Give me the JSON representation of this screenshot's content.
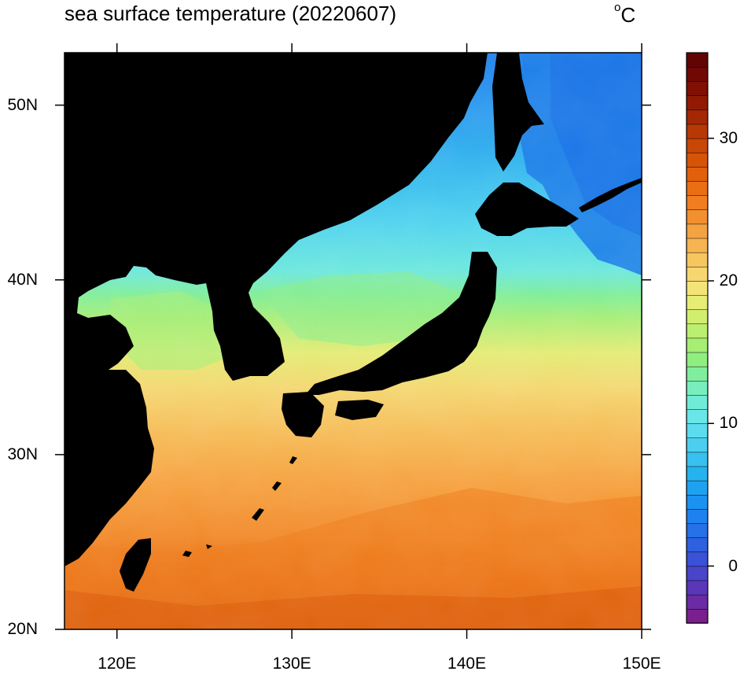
{
  "title": "sea surface temperature (20220607)",
  "unit": {
    "symbol": "o",
    "letter": "C"
  },
  "map": {
    "lon_range": [
      117,
      150
    ],
    "lat_range": [
      20,
      53
    ],
    "lon_ticks": [
      {
        "value": 120,
        "label": "120E"
      },
      {
        "value": 130,
        "label": "130E"
      },
      {
        "value": 140,
        "label": "140E"
      },
      {
        "value": 150,
        "label": "150E"
      }
    ],
    "lat_ticks": [
      {
        "value": 20,
        "label": "20N"
      },
      {
        "value": 30,
        "label": "30N"
      },
      {
        "value": 40,
        "label": "40N"
      },
      {
        "value": 50,
        "label": "50N"
      }
    ],
    "land_color": "#000000"
  },
  "colorbar": {
    "min": -4,
    "max": 36,
    "step": 1,
    "tick_labels": [
      {
        "value": 0,
        "label": "0"
      },
      {
        "value": 10,
        "label": "10"
      },
      {
        "value": 20,
        "label": "20"
      },
      {
        "value": 30,
        "label": "30"
      }
    ],
    "colors": [
      "#7a1f8e",
      "#6a2ba4",
      "#5a36b8",
      "#4a44c8",
      "#3a52d6",
      "#2e60e0",
      "#2670e8",
      "#1e82ee",
      "#1a92f0",
      "#1ea2f0",
      "#26b2ee",
      "#38c0ee",
      "#4ccfee",
      "#5cdcee",
      "#68e6e8",
      "#70ecd6",
      "#78eebc",
      "#80ee9c",
      "#90ee80",
      "#a6ee74",
      "#bcee70",
      "#d2ee70",
      "#e6ec74",
      "#f4e478",
      "#f6d670",
      "#f6c660",
      "#f6b452",
      "#f4a242",
      "#f29030",
      "#f07e20",
      "#ea6e14",
      "#e2600c",
      "#d65408",
      "#c84606",
      "#b83804",
      "#a42804",
      "#921a04",
      "#801004",
      "#700804",
      "#620404"
    ]
  }
}
